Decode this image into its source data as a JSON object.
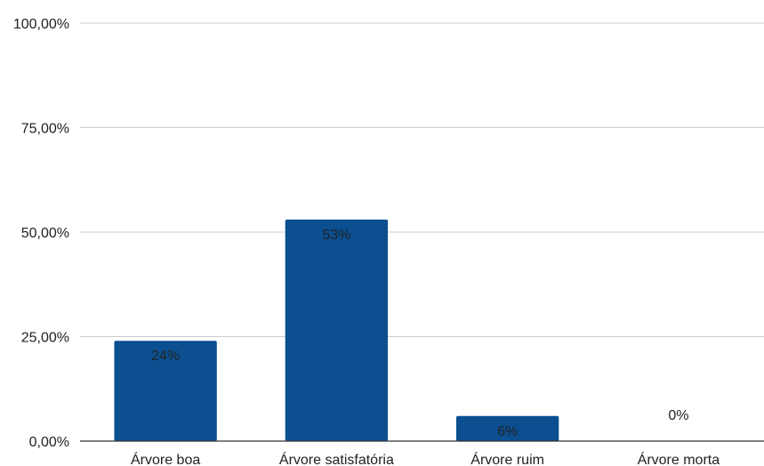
{
  "chart_data": {
    "type": "bar",
    "categories": [
      "Árvore boa",
      "Árvore satisfatória",
      "Árvore ruim",
      "Árvore morta"
    ],
    "values": [
      24,
      53,
      6,
      0
    ],
    "data_labels": [
      "24%",
      "53%",
      "6%",
      "0%"
    ],
    "y_ticks": [
      0,
      25,
      50,
      75,
      100
    ],
    "y_tick_labels": [
      "0,00%",
      "25,00%",
      "50,00%",
      "75,00%",
      "100,00%"
    ],
    "ylim": [
      0,
      100
    ],
    "grid": true,
    "title": "",
    "xlabel": "",
    "ylabel": "",
    "colors": {
      "bar": "#0b4f91",
      "grid": "#cccccc",
      "axis": "#333333",
      "text": "#222222"
    }
  }
}
